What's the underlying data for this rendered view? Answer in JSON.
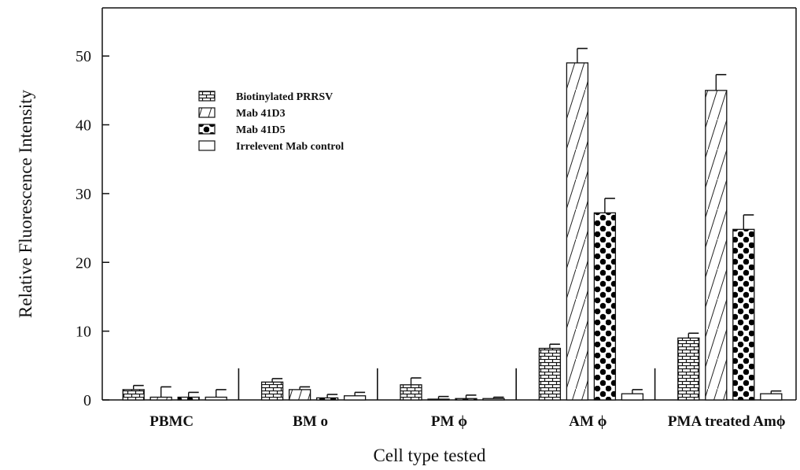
{
  "chart_data": {
    "type": "bar",
    "title": "",
    "xlabel": "Cell type tested",
    "ylabel": "Relative Fluorescence Intensity",
    "ylim": [
      0,
      57
    ],
    "yticks": [
      0,
      10,
      20,
      30,
      40,
      50
    ],
    "grid": false,
    "legend_position": "upper-left",
    "categories": [
      "PBMC",
      "BM o",
      "PM ϕ",
      "AM ϕ",
      "PMA treated Amϕ"
    ],
    "series": [
      {
        "name": "Biotinylated PRRSV",
        "pattern": "brick",
        "values": [
          1.5,
          2.6,
          2.2,
          7.5,
          9.0
        ],
        "errors": [
          0.6,
          0.5,
          1.0,
          0.6,
          0.7
        ]
      },
      {
        "name": "Mab 41D3",
        "pattern": "diagonal",
        "values": [
          0.4,
          1.5,
          0.1,
          49.0,
          45.0
        ],
        "errors": [
          1.5,
          0.4,
          0.4,
          2.1,
          2.3
        ]
      },
      {
        "name": "Mab 41D5",
        "pattern": "dots",
        "values": [
          0.4,
          0.3,
          0.2,
          27.2,
          24.8
        ],
        "errors": [
          0.7,
          0.5,
          0.5,
          2.1,
          2.1
        ]
      },
      {
        "name": "Irrelevent Mab control",
        "pattern": "open",
        "values": [
          0.4,
          0.6,
          0.2,
          0.9,
          0.9
        ],
        "errors": [
          1.1,
          0.5,
          0.2,
          0.6,
          0.4
        ]
      }
    ]
  }
}
